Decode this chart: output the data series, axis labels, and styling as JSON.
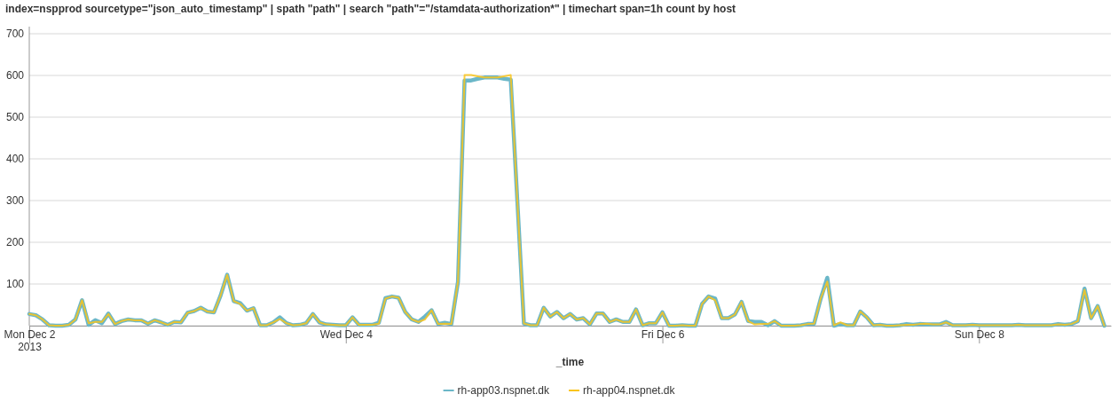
{
  "chart_data": {
    "type": "line",
    "title": "index=nspprod sourcetype=\"json_auto_timestamp\" | spath \"path\" | search \"path\"=\"/stamdata-authorization*\" | timechart span=1h count by host",
    "xlabel": "_time",
    "x": [
      "2013-12-02T00:00",
      "2013-12-02T01:00",
      "2013-12-02T02:00",
      "2013-12-02T03:00",
      "2013-12-02T04:00",
      "2013-12-02T05:00",
      "2013-12-02T06:00",
      "2013-12-02T07:00",
      "2013-12-02T08:00",
      "2013-12-02T09:00",
      "2013-12-02T10:00",
      "2013-12-02T11:00",
      "2013-12-02T12:00",
      "2013-12-02T13:00",
      "2013-12-02T14:00",
      "2013-12-02T15:00",
      "2013-12-02T16:00",
      "2013-12-02T17:00",
      "2013-12-02T18:00",
      "2013-12-02T19:00",
      "2013-12-02T20:00",
      "2013-12-02T21:00",
      "2013-12-02T22:00",
      "2013-12-02T23:00",
      "2013-12-03T00:00",
      "2013-12-03T01:00",
      "2013-12-03T02:00",
      "2013-12-03T03:00",
      "2013-12-03T04:00",
      "2013-12-03T05:00",
      "2013-12-03T06:00",
      "2013-12-03T07:00",
      "2013-12-03T08:00",
      "2013-12-03T09:00",
      "2013-12-03T10:00",
      "2013-12-03T11:00",
      "2013-12-03T12:00",
      "2013-12-03T13:00",
      "2013-12-03T14:00",
      "2013-12-03T15:00",
      "2013-12-03T16:00",
      "2013-12-03T17:00",
      "2013-12-03T18:00",
      "2013-12-03T19:00",
      "2013-12-03T20:00",
      "2013-12-03T21:00",
      "2013-12-03T22:00",
      "2013-12-03T23:00",
      "2013-12-04T00:00",
      "2013-12-04T01:00",
      "2013-12-04T02:00",
      "2013-12-04T03:00",
      "2013-12-04T04:00",
      "2013-12-04T05:00",
      "2013-12-04T06:00",
      "2013-12-04T07:00",
      "2013-12-04T08:00",
      "2013-12-04T09:00",
      "2013-12-04T10:00",
      "2013-12-04T11:00",
      "2013-12-04T12:00",
      "2013-12-04T13:00",
      "2013-12-04T14:00",
      "2013-12-04T15:00",
      "2013-12-04T16:00",
      "2013-12-04T17:00",
      "2013-12-04T18:00",
      "2013-12-04T19:00",
      "2013-12-04T20:00",
      "2013-12-04T21:00",
      "2013-12-04T22:00",
      "2013-12-04T23:00",
      "2013-12-05T00:00",
      "2013-12-05T01:00",
      "2013-12-05T02:00",
      "2013-12-05T03:00",
      "2013-12-05T04:00",
      "2013-12-05T05:00",
      "2013-12-05T06:00",
      "2013-12-05T07:00",
      "2013-12-05T08:00",
      "2013-12-05T09:00",
      "2013-12-05T10:00",
      "2013-12-05T11:00",
      "2013-12-05T12:00",
      "2013-12-05T13:00",
      "2013-12-05T14:00",
      "2013-12-05T15:00",
      "2013-12-05T16:00",
      "2013-12-05T17:00",
      "2013-12-05T18:00",
      "2013-12-05T19:00",
      "2013-12-05T20:00",
      "2013-12-05T21:00",
      "2013-12-05T22:00",
      "2013-12-05T23:00",
      "2013-12-06T00:00",
      "2013-12-06T01:00",
      "2013-12-06T02:00",
      "2013-12-06T03:00",
      "2013-12-06T04:00",
      "2013-12-06T05:00",
      "2013-12-06T06:00",
      "2013-12-06T07:00",
      "2013-12-06T08:00",
      "2013-12-06T09:00",
      "2013-12-06T10:00",
      "2013-12-06T11:00",
      "2013-12-06T12:00",
      "2013-12-06T13:00",
      "2013-12-06T14:00",
      "2013-12-06T15:00",
      "2013-12-06T16:00",
      "2013-12-06T17:00",
      "2013-12-06T18:00",
      "2013-12-06T19:00",
      "2013-12-06T20:00",
      "2013-12-06T21:00",
      "2013-12-06T22:00",
      "2013-12-06T23:00",
      "2013-12-07T00:00",
      "2013-12-07T01:00",
      "2013-12-07T02:00",
      "2013-12-07T03:00",
      "2013-12-07T04:00",
      "2013-12-07T05:00",
      "2013-12-07T06:00",
      "2013-12-07T07:00",
      "2013-12-07T08:00",
      "2013-12-07T09:00",
      "2013-12-07T10:00",
      "2013-12-07T11:00",
      "2013-12-07T12:00",
      "2013-12-07T13:00",
      "2013-12-07T14:00",
      "2013-12-07T15:00",
      "2013-12-07T16:00",
      "2013-12-07T17:00",
      "2013-12-07T18:00",
      "2013-12-07T19:00",
      "2013-12-07T20:00",
      "2013-12-07T21:00",
      "2013-12-07T22:00",
      "2013-12-07T23:00",
      "2013-12-08T00:00",
      "2013-12-08T01:00",
      "2013-12-08T02:00",
      "2013-12-08T03:00",
      "2013-12-08T04:00",
      "2013-12-08T05:00",
      "2013-12-08T06:00",
      "2013-12-08T07:00",
      "2013-12-08T08:00",
      "2013-12-08T09:00",
      "2013-12-08T10:00",
      "2013-12-08T11:00",
      "2013-12-08T12:00",
      "2013-12-08T13:00",
      "2013-12-08T14:00",
      "2013-12-08T15:00",
      "2013-12-08T16:00",
      "2013-12-08T17:00",
      "2013-12-08T18:00",
      "2013-12-08T19:00"
    ],
    "series": [
      {
        "name": "rh-app03.nspnet.dk",
        "color": "#6bb7c8",
        "values": [
          28,
          25,
          15,
          1,
          0,
          0,
          2,
          15,
          61,
          2,
          13,
          6,
          29,
          4,
          11,
          15,
          13,
          13,
          5,
          13,
          8,
          2,
          9,
          8,
          31,
          35,
          43,
          34,
          32,
          72,
          122,
          59,
          54,
          36,
          42,
          1,
          1,
          8,
          20,
          6,
          1,
          2,
          6,
          28,
          8,
          3,
          2,
          1,
          1,
          20,
          2,
          2,
          2,
          7,
          66,
          70,
          67,
          33,
          15,
          9,
          22,
          37,
          4,
          7,
          4,
          105,
          588,
          588,
          592,
          595,
          595,
          595,
          592,
          590,
          300,
          5,
          1,
          1,
          43,
          22,
          33,
          18,
          28,
          15,
          18,
          3,
          29,
          29,
          9,
          15,
          9,
          9,
          39,
          1,
          6,
          6,
          32,
          0,
          0,
          1,
          0,
          0,
          52,
          70,
          65,
          18,
          18,
          27,
          57,
          11,
          9,
          9,
          1,
          11,
          0,
          0,
          0,
          1,
          4,
          5,
          65,
          115,
          0,
          4,
          1,
          1,
          34,
          20,
          1,
          2,
          0,
          0,
          1,
          4,
          2,
          4,
          3,
          3,
          3,
          9,
          1,
          1,
          1,
          2,
          1,
          1,
          1,
          1,
          1,
          1,
          2,
          1,
          1,
          1,
          1,
          1,
          4,
          2,
          4,
          11,
          89,
          18,
          47,
          0
        ]
      },
      {
        "name": "rh-app04.nspnet.dk",
        "color": "#fac51c",
        "values": [
          28,
          25,
          15,
          1,
          0,
          0,
          2,
          15,
          61,
          6,
          9,
          9,
          28,
          4,
          11,
          15,
          13,
          13,
          5,
          13,
          8,
          2,
          9,
          8,
          31,
          35,
          43,
          34,
          32,
          72,
          122,
          59,
          52,
          36,
          42,
          1,
          1,
          8,
          16,
          6,
          1,
          2,
          6,
          28,
          8,
          3,
          2,
          1,
          1,
          20,
          2,
          2,
          2,
          5,
          65,
          70,
          67,
          33,
          15,
          9,
          15,
          37,
          4,
          5,
          4,
          105,
          601,
          601,
          598,
          595,
          595,
          595,
          598,
          601,
          300,
          5,
          1,
          1,
          43,
          22,
          33,
          18,
          28,
          15,
          18,
          3,
          29,
          29,
          9,
          15,
          9,
          9,
          39,
          1,
          6,
          6,
          32,
          0,
          0,
          1,
          0,
          0,
          52,
          70,
          61,
          18,
          18,
          27,
          57,
          11,
          3,
          4,
          4,
          11,
          0,
          0,
          0,
          1,
          4,
          5,
          65,
          106,
          1,
          8,
          1,
          1,
          34,
          20,
          1,
          2,
          0,
          0,
          1,
          2,
          2,
          4,
          5,
          3,
          3,
          8,
          1,
          1,
          1,
          2,
          1,
          1,
          1,
          1,
          1,
          1,
          2,
          1,
          1,
          1,
          1,
          1,
          3,
          2,
          4,
          11,
          86,
          18,
          47,
          0
        ]
      }
    ],
    "xlim": [
      "2013-12-02T00:00",
      "2013-12-08T20:00"
    ],
    "xticks": [
      {
        "value": "2013-12-02T00:00",
        "label": "Mon Dec 2\n2013"
      },
      {
        "value": "2013-12-04T00:00",
        "label": "Wed Dec 4"
      },
      {
        "value": "2013-12-06T00:00",
        "label": "Fri Dec 6"
      },
      {
        "value": "2013-12-08T00:00",
        "label": "Sun Dec 8"
      }
    ],
    "ylim": [
      0,
      700
    ],
    "yticks": [
      {
        "value": 0,
        "label": null
      },
      100,
      200,
      300,
      400,
      500,
      600,
      700
    ],
    "grid": "y",
    "legend": "bottom",
    "marker": "none",
    "line_style": "solid"
  }
}
